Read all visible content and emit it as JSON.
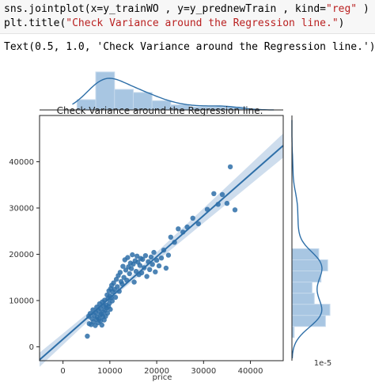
{
  "code": {
    "line1_prefix": "sns.jointplot(x=y_trainWO , y=y_prednewTrain , kind=",
    "line1_string": "\"reg\"",
    "line1_suffix": " )",
    "line2_prefix": "plt.title(",
    "line2_string": "\"Check Variance around the Regression line.\"",
    "line2_suffix": ")"
  },
  "output_text": "Text(0.5, 1.0, 'Check Variance around the Regression line.')",
  "chart_data": {
    "type": "scatter",
    "title": "Check Variance around the Regression line.",
    "xlabel": "price",
    "ylabel": "",
    "xlim": [
      -5000,
      47000
    ],
    "ylim": [
      -3000,
      50000
    ],
    "xticks": [
      0,
      10000,
      20000,
      30000,
      40000
    ],
    "yticks": [
      0,
      10000,
      20000,
      30000,
      40000
    ],
    "marginal_label": "1e-5",
    "regression": {
      "x0": -5000,
      "y0": -2800,
      "x1": 47000,
      "y1": 43500
    },
    "color": "#2e6fa8",
    "points": [
      [
        5200,
        2300
      ],
      [
        5500,
        6600
      ],
      [
        5600,
        5000
      ],
      [
        5800,
        7200
      ],
      [
        6000,
        4800
      ],
      [
        6200,
        6100
      ],
      [
        6400,
        8000
      ],
      [
        6500,
        5400
      ],
      [
        6700,
        6800
      ],
      [
        6900,
        4600
      ],
      [
        7000,
        7400
      ],
      [
        7100,
        5900
      ],
      [
        7200,
        8600
      ],
      [
        7300,
        6400
      ],
      [
        7500,
        5200
      ],
      [
        7600,
        7800
      ],
      [
        7700,
        6000
      ],
      [
        7800,
        9300
      ],
      [
        7900,
        6900
      ],
      [
        8000,
        5600
      ],
      [
        8100,
        8200
      ],
      [
        8200,
        7100
      ],
      [
        8300,
        4700
      ],
      [
        8400,
        9700
      ],
      [
        8500,
        6500
      ],
      [
        8600,
        7500
      ],
      [
        8700,
        8800
      ],
      [
        8800,
        5800
      ],
      [
        8900,
        10100
      ],
      [
        9000,
        7900
      ],
      [
        9100,
        6600
      ],
      [
        9200,
        9000
      ],
      [
        9300,
        8400
      ],
      [
        9400,
        11200
      ],
      [
        9500,
        7300
      ],
      [
        9600,
        10400
      ],
      [
        9700,
        8700
      ],
      [
        9800,
        12100
      ],
      [
        9900,
        9400
      ],
      [
        10000,
        11000
      ],
      [
        10100,
        8100
      ],
      [
        10200,
        12600
      ],
      [
        10300,
        10600
      ],
      [
        10400,
        13300
      ],
      [
        10500,
        9900
      ],
      [
        10600,
        11900
      ],
      [
        10800,
        13800
      ],
      [
        11000,
        12400
      ],
      [
        11200,
        10700
      ],
      [
        11400,
        14600
      ],
      [
        11600,
        13000
      ],
      [
        11800,
        15400
      ],
      [
        12000,
        12000
      ],
      [
        12200,
        16100
      ],
      [
        12400,
        14100
      ],
      [
        12600,
        13600
      ],
      [
        12800,
        17400
      ],
      [
        13000,
        15000
      ],
      [
        13200,
        18800
      ],
      [
        13400,
        16600
      ],
      [
        13600,
        14400
      ],
      [
        13800,
        19300
      ],
      [
        14000,
        17300
      ],
      [
        14200,
        15800
      ],
      [
        14400,
        18100
      ],
      [
        14600,
        16900
      ],
      [
        14800,
        19900
      ],
      [
        15000,
        17900
      ],
      [
        15200,
        14000
      ],
      [
        15400,
        18600
      ],
      [
        15600,
        16300
      ],
      [
        15800,
        19600
      ],
      [
        16000,
        18300
      ],
      [
        16200,
        15600
      ],
      [
        16400,
        17600
      ],
      [
        16600,
        19100
      ],
      [
        16800,
        16000
      ],
      [
        17000,
        18900
      ],
      [
        17300,
        17100
      ],
      [
        17600,
        19700
      ],
      [
        17900,
        15200
      ],
      [
        18200,
        18400
      ],
      [
        18500,
        16700
      ],
      [
        18800,
        19400
      ],
      [
        19100,
        17800
      ],
      [
        19400,
        20400
      ],
      [
        19700,
        16200
      ],
      [
        20000,
        18700
      ],
      [
        20500,
        17500
      ],
      [
        21000,
        19200
      ],
      [
        21500,
        20900
      ],
      [
        22000,
        17000
      ],
      [
        22500,
        19800
      ],
      [
        23000,
        23700
      ],
      [
        23800,
        22600
      ],
      [
        24600,
        25500
      ],
      [
        25600,
        24800
      ],
      [
        26500,
        25900
      ],
      [
        27700,
        27800
      ],
      [
        28900,
        26600
      ],
      [
        30800,
        29700
      ],
      [
        32200,
        33100
      ],
      [
        33100,
        30800
      ],
      [
        34000,
        32900
      ],
      [
        35000,
        31000
      ],
      [
        35700,
        38900
      ],
      [
        36700,
        29600
      ]
    ]
  }
}
